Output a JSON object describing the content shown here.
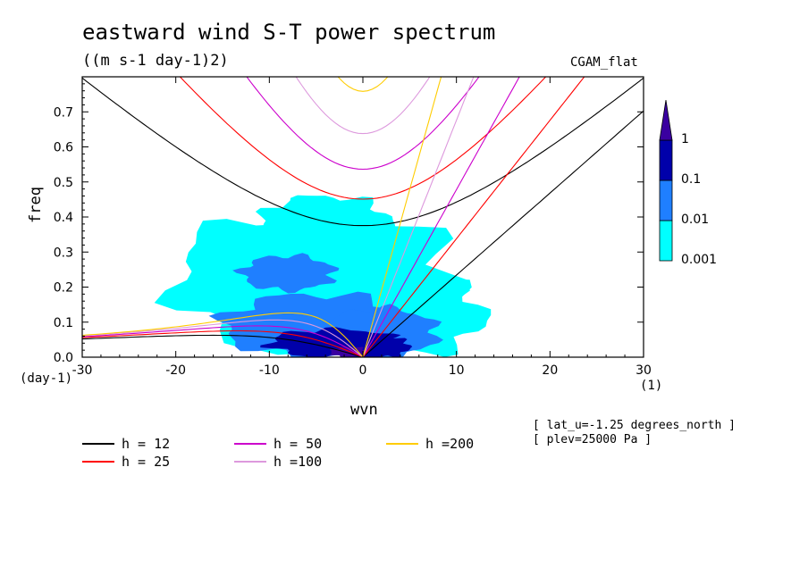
{
  "title": "eastward wind S-T power spectrum",
  "units": "((m s-1 day-1)2)",
  "dataset": "CGAM_flat",
  "notes": [
    "[ lat_u=-1.25 degrees_north ]",
    "[ plev=25000 Pa ]"
  ],
  "chart_data": {
    "type": "heatmap",
    "title": "eastward wind S-T power spectrum",
    "xlabel": "wvn",
    "ylabel": "freq",
    "x_units": "(1)",
    "y_units": "(day-1)",
    "xlim": [
      -30,
      30
    ],
    "ylim": [
      0,
      0.8
    ],
    "x_ticks": [
      -30,
      -20,
      -10,
      0,
      10,
      20,
      30
    ],
    "y_ticks": [
      0.0,
      0.1,
      0.2,
      0.3,
      0.4,
      0.5,
      0.6,
      0.7
    ],
    "x_tick_labels": [
      "-30",
      "-20",
      "-10",
      "0",
      "10",
      "20",
      "30"
    ],
    "y_tick_labels": [
      "0.0",
      "0.1",
      "0.2",
      "0.3",
      "0.4",
      "0.5",
      "0.6",
      "0.7"
    ],
    "colorbar": {
      "levels": [
        0.001,
        0.01,
        0.1,
        1
      ],
      "labels": [
        "0.001",
        "0.01",
        "0.1",
        "1"
      ],
      "colors": [
        "#00ffff",
        "#1f7fff",
        "#0000aa",
        "#3a00a0"
      ]
    },
    "dispersion_curves": [
      {
        "h": 12,
        "label": "h = 12",
        "color": "#000000"
      },
      {
        "h": 25,
        "label": "h = 25",
        "color": "#ff0000"
      },
      {
        "h": 50,
        "label": "h = 50",
        "color": "#cc00cc"
      },
      {
        "h": 100,
        "label": "h =100",
        "color": "#dd99dd"
      },
      {
        "h": 200,
        "label": "h =200",
        "color": "#ffcc00"
      }
    ],
    "power_regions": [
      {
        "level": 0.001,
        "cx": -5,
        "cy": 0.22,
        "rx": 15,
        "ry": 0.21
      },
      {
        "level": 0.001,
        "cx": 3,
        "cy": 0.12,
        "rx": 10,
        "ry": 0.12
      },
      {
        "level": 0.001,
        "cx": -4,
        "cy": 0.38,
        "rx": 7,
        "ry": 0.08
      },
      {
        "level": 0.01,
        "cx": -5,
        "cy": 0.09,
        "rx": 10,
        "ry": 0.09
      },
      {
        "level": 0.01,
        "cx": -8,
        "cy": 0.24,
        "rx": 5,
        "ry": 0.05
      },
      {
        "level": 0.01,
        "cx": 2,
        "cy": 0.07,
        "rx": 6,
        "ry": 0.07
      },
      {
        "level": 0.1,
        "cx": -3,
        "cy": 0.04,
        "rx": 7,
        "ry": 0.04
      },
      {
        "level": 0.1,
        "cx": 2,
        "cy": 0.03,
        "rx": 3,
        "ry": 0.03
      },
      {
        "level": 1,
        "cx": -1.5,
        "cy": 0.015,
        "rx": 2,
        "ry": 0.015
      }
    ]
  }
}
